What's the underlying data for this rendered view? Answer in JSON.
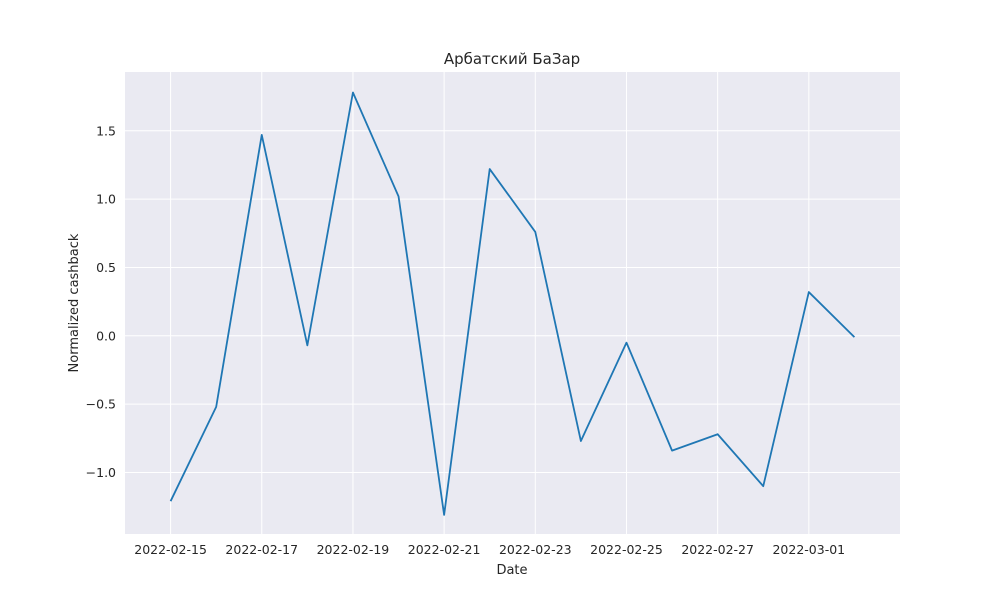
{
  "chart_data": {
    "type": "line",
    "title": "Арбатский БаЗар",
    "xlabel": "Date",
    "ylabel": "Normalized cashback",
    "grid": true,
    "colors": {
      "background": "#eaeaf2",
      "grid": "#ffffff",
      "line": "#1f77b4",
      "text": "#262626"
    },
    "x_tick_labels": [
      "2022-02-15",
      "2022-02-17",
      "2022-02-19",
      "2022-02-21",
      "2022-02-23",
      "2022-02-25",
      "2022-02-27",
      "2022-03-01"
    ],
    "y_tick_values": [
      -1.0,
      -0.5,
      0.0,
      0.5,
      1.0,
      1.5
    ],
    "y_tick_labels": [
      "−1.0",
      "−0.5",
      "0.0",
      "0.5",
      "1.0",
      "1.5"
    ],
    "xlim": [
      "2022-02-14",
      "2022-03-03"
    ],
    "ylim": [
      -1.45,
      1.93
    ],
    "series": [
      {
        "x": [
          "2022-02-15",
          "2022-02-16",
          "2022-02-17",
          "2022-02-18",
          "2022-02-19",
          "2022-02-20",
          "2022-02-21",
          "2022-02-22",
          "2022-02-23",
          "2022-02-24",
          "2022-02-25",
          "2022-02-26",
          "2022-02-27",
          "2022-02-28",
          "2022-03-01",
          "2022-03-02"
        ],
        "values": [
          -1.21,
          -0.52,
          1.47,
          -0.07,
          1.78,
          1.02,
          -1.31,
          1.22,
          0.76,
          -0.77,
          -0.05,
          -0.84,
          -0.72,
          -1.1,
          0.32,
          -0.01
        ]
      }
    ]
  }
}
